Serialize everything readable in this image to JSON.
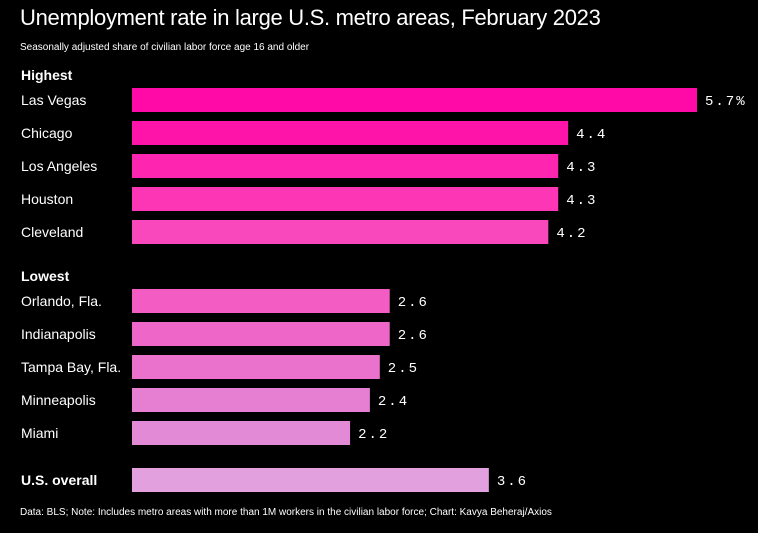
{
  "chart_data": {
    "type": "bar",
    "orientation": "horizontal",
    "title": "Unemployment rate in large U.S. metro areas, February 2023",
    "subtitle": "Seasonally adjusted share of civilian labor force age 16 and older",
    "source": "Data: BLS; Note: Includes metro areas with more than 1M workers in the civilian labor force; Chart: Kavya Beheraj/Axios",
    "xlim": [
      0,
      5.7
    ],
    "grid": false,
    "groups": [
      {
        "label": "Highest",
        "bars": [
          {
            "category": "Las Vegas",
            "value": 5.7,
            "label": "5.7%",
            "color": "#ff0aa6"
          },
          {
            "category": "Chicago",
            "value": 4.4,
            "label": "4.4",
            "color": "#ff14aa"
          },
          {
            "category": "Los Angeles",
            "value": 4.3,
            "label": "4.3",
            "color": "#fe25b0"
          },
          {
            "category": "Houston",
            "value": 4.3,
            "label": "4.3",
            "color": "#fd36b6"
          },
          {
            "category": "Cleveland",
            "value": 4.2,
            "label": "4.2",
            "color": "#f948bb"
          }
        ]
      },
      {
        "label": "Lowest",
        "bars": [
          {
            "category": "Orlando, Fla.",
            "value": 2.6,
            "label": "2.6",
            "color": "#f35cc3"
          },
          {
            "category": "Indianapolis",
            "value": 2.6,
            "label": "2.6",
            "color": "#ee67c8"
          },
          {
            "category": "Tampa Bay, Fla.",
            "value": 2.5,
            "label": "2.5",
            "color": "#ea72cd"
          },
          {
            "category": "Minneapolis",
            "value": 2.4,
            "label": "2.4",
            "color": "#e67fd2"
          },
          {
            "category": "Miami",
            "value": 2.2,
            "label": "2.2",
            "color": "#e38ad7"
          }
        ]
      },
      {
        "label": "",
        "bars": [
          {
            "category": "U.S. overall",
            "value": 3.6,
            "label": "3.6",
            "color": "#e3a0df",
            "bold": true
          }
        ]
      }
    ]
  }
}
